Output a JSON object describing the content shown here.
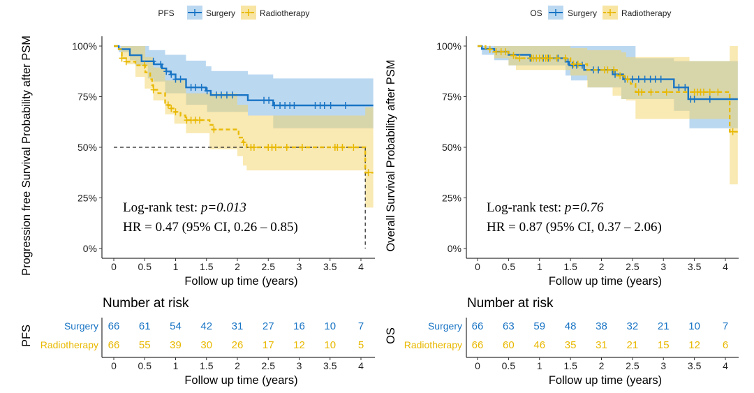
{
  "chart_data": [
    {
      "type": "line",
      "subtype": "kaplan-meier",
      "legend_title": "PFS",
      "legend_position": "top",
      "xlabel": "Follow up time (years)",
      "ylabel": "Progression free Survival Probability after PSM",
      "xlim": [
        0,
        4.2
      ],
      "ylim": [
        0,
        1
      ],
      "xticks": [
        "0",
        "0.5",
        "1",
        "1.5",
        "2",
        "2.5",
        "3",
        "3.5",
        "4"
      ],
      "xtick_values": [
        0,
        0.5,
        1,
        1.5,
        2,
        2.5,
        3,
        3.5,
        4
      ],
      "yticks": [
        "0%",
        "25%",
        "50%",
        "75%",
        "100%"
      ],
      "ytick_values": [
        0,
        0.25,
        0.5,
        0.75,
        1
      ],
      "annotation": {
        "line1_prefix": "Log-rank test: ",
        "line1_p": "p=0.013",
        "line2": "HR = 0.47 (95% CI, 0.26 – 0.85)"
      },
      "median_line": {
        "y": 0.5,
        "x_end": 4.07
      },
      "series": [
        {
          "name": "Surgery",
          "color": "#1874C4",
          "band": "#8DBEE8",
          "dashed": false,
          "end": 4.2,
          "steps": [
            [
              0,
              1
            ],
            [
              0.08,
              0.985
            ],
            [
              0.26,
              0.955
            ],
            [
              0.45,
              0.925
            ],
            [
              0.65,
              0.91
            ],
            [
              0.78,
              0.89
            ],
            [
              0.85,
              0.875
            ],
            [
              0.92,
              0.86
            ],
            [
              1.0,
              0.836
            ],
            [
              1.17,
              0.796
            ],
            [
              1.49,
              0.779
            ],
            [
              1.57,
              0.758
            ],
            [
              2.17,
              0.732
            ],
            [
              2.58,
              0.707
            ]
          ],
          "ci_upper": [
            [
              0,
              1
            ],
            [
              0.57,
              0.98
            ],
            [
              0.83,
              0.957
            ],
            [
              1.17,
              0.928
            ],
            [
              1.49,
              0.9
            ],
            [
              1.58,
              0.877
            ],
            [
              2.17,
              0.86
            ],
            [
              2.58,
              0.84
            ]
          ],
          "ci_lower": [
            [
              0,
              1
            ],
            [
              0.08,
              0.97
            ],
            [
              0.26,
              0.93
            ],
            [
              0.35,
              0.905
            ],
            [
              0.55,
              0.84
            ],
            [
              0.64,
              0.825
            ],
            [
              0.83,
              0.767
            ],
            [
              1.17,
              0.71
            ],
            [
              1.51,
              0.675
            ],
            [
              2.17,
              0.657
            ],
            [
              2.58,
              0.594
            ]
          ],
          "censor": [
            0.64,
            0.76,
            0.85,
            0.93,
            1.0,
            1.08,
            1.25,
            1.32,
            1.42,
            1.51,
            1.66,
            1.74,
            1.83,
            1.92,
            2.43,
            2.51,
            2.6,
            2.69,
            2.77,
            2.85,
            2.92,
            3.26,
            3.34,
            3.41,
            3.51,
            3.75
          ]
        },
        {
          "name": "Radiotherapy",
          "color": "#E8B800",
          "band": "#F4D466",
          "dashed": true,
          "end": 4.2,
          "steps": [
            [
              0,
              1
            ],
            [
              0.08,
              0.984
            ],
            [
              0.13,
              0.94
            ],
            [
              0.2,
              0.923
            ],
            [
              0.35,
              0.905
            ],
            [
              0.51,
              0.87
            ],
            [
              0.59,
              0.836
            ],
            [
              0.62,
              0.807
            ],
            [
              0.64,
              0.784
            ],
            [
              0.72,
              0.767
            ],
            [
              0.83,
              0.709
            ],
            [
              0.9,
              0.692
            ],
            [
              0.98,
              0.675
            ],
            [
              1.08,
              0.657
            ],
            [
              1.16,
              0.634
            ],
            [
              1.55,
              0.611
            ],
            [
              1.6,
              0.588
            ],
            [
              2.02,
              0.548
            ],
            [
              2.09,
              0.525
            ],
            [
              2.15,
              0.5
            ],
            [
              4.07,
              0.375
            ]
          ],
          "ci_upper": [
            [
              0,
              1
            ],
            [
              0.51,
              0.946
            ],
            [
              0.64,
              0.894
            ],
            [
              0.83,
              0.83
            ],
            [
              1.17,
              0.767
            ],
            [
              1.55,
              0.767
            ],
            [
              2.0,
              0.71
            ],
            [
              2.17,
              0.657
            ],
            [
              4.07,
              0.698
            ]
          ],
          "ci_lower": [
            [
              0,
              1
            ],
            [
              0.12,
              0.94
            ],
            [
              0.2,
              0.91
            ],
            [
              0.35,
              0.848
            ],
            [
              0.5,
              0.79
            ],
            [
              0.64,
              0.732
            ],
            [
              0.83,
              0.663
            ],
            [
              0.98,
              0.617
            ],
            [
              1.17,
              0.57
            ],
            [
              1.55,
              0.49
            ],
            [
              2.0,
              0.456
            ],
            [
              2.09,
              0.41
            ],
            [
              2.15,
              0.386
            ],
            [
              4.07,
              0.202
            ]
          ],
          "censor": [
            0.13,
            0.2,
            0.5,
            0.64,
            0.88,
            0.93,
            1.0,
            1.18,
            1.25,
            1.32,
            1.39,
            1.62,
            2.1,
            2.22,
            2.27,
            2.5,
            2.56,
            2.62,
            2.8,
            3.05,
            3.58,
            3.62,
            3.7,
            3.88,
            4.12
          ]
        }
      ],
      "risk_table": {
        "title": "Number at risk",
        "label": "PFS",
        "xlabel": "Follow up time (years)",
        "rows": [
          {
            "name": "Surgery",
            "values": [
              "66",
              "61",
              "54",
              "42",
              "31",
              "27",
              "16",
              "10",
              "7"
            ]
          },
          {
            "name": "Radiotherapy",
            "values": [
              "66",
              "55",
              "39",
              "30",
              "26",
              "17",
              "12",
              "10",
              "5"
            ]
          }
        ]
      }
    },
    {
      "type": "line",
      "subtype": "kaplan-meier",
      "legend_title": "OS",
      "legend_position": "top",
      "xlabel": "Follow up time (years)",
      "ylabel": "Overall Survival Probability after PSM",
      "xlim": [
        0,
        4.2
      ],
      "ylim": [
        0,
        1
      ],
      "xticks": [
        "0",
        "0.5",
        "1",
        "1.5",
        "2",
        "2.5",
        "3",
        "3.5",
        "4"
      ],
      "xtick_values": [
        0,
        0.5,
        1,
        1.5,
        2,
        2.5,
        3,
        3.5,
        4
      ],
      "yticks": [
        "0%",
        "25%",
        "50%",
        "75%",
        "100%"
      ],
      "ytick_values": [
        0,
        0.25,
        0.5,
        0.75,
        1
      ],
      "annotation": {
        "line1_prefix": "Log-rank test: ",
        "line1_p": "p=0.76",
        "line2": "HR = 0.87 (95% CI, 0.37 – 2.06)"
      },
      "series": [
        {
          "name": "Surgery",
          "color": "#1874C4",
          "band": "#8DBEE8",
          "dashed": false,
          "end": 4.2,
          "steps": [
            [
              0,
              1
            ],
            [
              0.07,
              0.986
            ],
            [
              0.27,
              0.972
            ],
            [
              0.5,
              0.957
            ],
            [
              0.85,
              0.94
            ],
            [
              1.42,
              0.923
            ],
            [
              1.48,
              0.905
            ],
            [
              1.72,
              0.882
            ],
            [
              2.18,
              0.86
            ],
            [
              2.35,
              0.836
            ],
            [
              3.17,
              0.796
            ],
            [
              3.4,
              0.738
            ]
          ],
          "ci_upper": [
            [
              0,
              1
            ],
            [
              2.55,
              0.94
            ],
            [
              3.17,
              0.926
            ]
          ],
          "ci_lower": [
            [
              0,
              1
            ],
            [
              0.07,
              0.957
            ],
            [
              0.27,
              0.93
            ],
            [
              0.5,
              0.905
            ],
            [
              1.42,
              0.854
            ],
            [
              1.51,
              0.83
            ],
            [
              1.78,
              0.796
            ],
            [
              2.32,
              0.738
            ],
            [
              3.17,
              0.68
            ],
            [
              3.42,
              0.594
            ]
          ],
          "censor": [
            0.85,
            1.0,
            1.06,
            1.14,
            1.3,
            1.46,
            1.53,
            1.6,
            1.69,
            1.87,
            1.95,
            2.22,
            2.38,
            2.5,
            2.6,
            2.7,
            2.79,
            2.87,
            2.96,
            3.25,
            3.35,
            3.44,
            3.5,
            3.75
          ]
        },
        {
          "name": "Radiotherapy",
          "color": "#E8B800",
          "band": "#F4D466",
          "dashed": true,
          "end": 4.2,
          "steps": [
            [
              0,
              1
            ],
            [
              0.13,
              0.984
            ],
            [
              0.25,
              0.972
            ],
            [
              0.5,
              0.954
            ],
            [
              0.62,
              0.94
            ],
            [
              1.5,
              0.911
            ],
            [
              1.77,
              0.882
            ],
            [
              2.25,
              0.854
            ],
            [
              2.37,
              0.836
            ],
            [
              2.47,
              0.813
            ],
            [
              2.55,
              0.773
            ],
            [
              4.07,
              0.577
            ]
          ],
          "ci_upper": [
            [
              0,
              1
            ],
            [
              1.5,
              0.99
            ],
            [
              1.77,
              0.98
            ],
            [
              2.32,
              0.969
            ],
            [
              2.4,
              0.946
            ],
            [
              3.42,
              0.926
            ],
            [
              4.07,
              1.0
            ]
          ],
          "ci_lower": [
            [
              0,
              1
            ],
            [
              0.27,
              0.94
            ],
            [
              0.5,
              0.905
            ],
            [
              0.62,
              0.882
            ],
            [
              0.93,
              0.882
            ],
            [
              1.5,
              0.854
            ],
            [
              1.77,
              0.796
            ],
            [
              2.18,
              0.755
            ],
            [
              2.32,
              0.738
            ],
            [
              2.4,
              0.732
            ],
            [
              2.55,
              0.64
            ],
            [
              4.07,
              0.317
            ]
          ],
          "censor": [
            0.2,
            0.3,
            0.38,
            0.45,
            0.58,
            0.68,
            0.87,
            0.9,
            0.95,
            1.0,
            1.05,
            1.1,
            1.13,
            1.17,
            1.28,
            1.42,
            1.55,
            1.62,
            2.05,
            2.1,
            2.2,
            2.3,
            2.42,
            2.6,
            2.65,
            2.8,
            3.05,
            3.5,
            3.55,
            3.6,
            3.65,
            3.75,
            3.88,
            4.12
          ]
        }
      ],
      "risk_table": {
        "title": "Number at risk",
        "label": "OS",
        "xlabel": "Follow up time (years)",
        "rows": [
          {
            "name": "Surgery",
            "values": [
              "66",
              "63",
              "59",
              "48",
              "38",
              "32",
              "21",
              "10",
              "7"
            ]
          },
          {
            "name": "Radiotherapy",
            "values": [
              "66",
              "60",
              "46",
              "35",
              "31",
              "21",
              "15",
              "12",
              "6"
            ]
          }
        ]
      }
    }
  ]
}
